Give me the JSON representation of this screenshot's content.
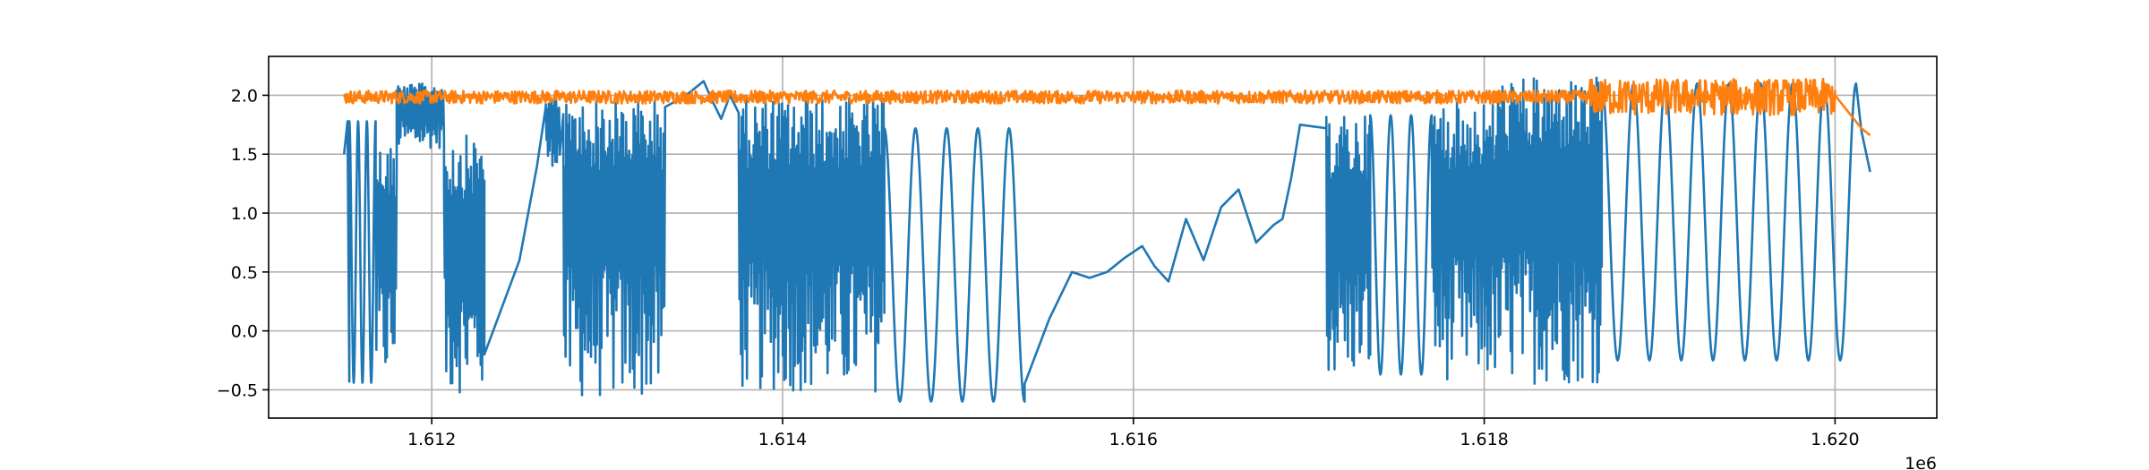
{
  "chart_data": {
    "type": "line",
    "title": "",
    "xlabel": "",
    "ylabel": "",
    "x_offset_label": "1e6",
    "xlim": [
      1.61107,
      1.62058
    ],
    "ylim": [
      -0.74,
      2.33
    ],
    "grid": true,
    "x_ticks": [
      1.612,
      1.614,
      1.616,
      1.618,
      1.62
    ],
    "x_tick_labels": [
      "1.612",
      "1.614",
      "1.616",
      "1.618",
      "1.620"
    ],
    "y_ticks": [
      -0.5,
      0.0,
      0.5,
      1.0,
      1.5,
      2.0
    ],
    "y_tick_labels": [
      "−0.5",
      "0.0",
      "0.5",
      "1.0",
      "1.5",
      "2.0"
    ],
    "series": [
      {
        "color": "#1f77b4",
        "segments": [
          {
            "kind": "points",
            "x": [
              1.6115,
              1.61152,
              1.61153
            ],
            "y": [
              1.5,
              1.78,
              -0.43
            ]
          },
          {
            "kind": "osc",
            "x0": 1.61153,
            "x1": 1.61168,
            "lo": -0.44,
            "hi": 1.78,
            "n": 3
          },
          {
            "kind": "noise",
            "x0": 1.61168,
            "x1": 1.6118,
            "lo": -0.44,
            "hi": 1.6
          },
          {
            "kind": "noise",
            "x0": 1.6118,
            "x1": 1.61207,
            "lo": 1.55,
            "hi": 2.1
          },
          {
            "kind": "noise",
            "x0": 1.61207,
            "x1": 1.6123,
            "lo": -0.53,
            "hi": 1.66
          },
          {
            "kind": "points",
            "x": [
              1.6123,
              1.6124,
              1.6125,
              1.6126,
              1.61265
            ],
            "y": [
              -0.2,
              0.2,
              0.6,
              1.4,
              1.9
            ]
          },
          {
            "kind": "noise",
            "x0": 1.61265,
            "x1": 1.61273,
            "lo": 1.4,
            "hi": 2.0
          },
          {
            "kind": "noise",
            "x0": 1.61275,
            "x1": 1.61333,
            "lo": -0.58,
            "hi": 1.98
          },
          {
            "kind": "points",
            "x": [
              1.61333,
              1.61345,
              1.61355,
              1.6136,
              1.61365,
              1.6137,
              1.61375
            ],
            "y": [
              1.9,
              2.0,
              2.12,
              1.95,
              1.8,
              2.0,
              1.85
            ]
          },
          {
            "kind": "noise",
            "x0": 1.61375,
            "x1": 1.61458,
            "lo": -0.52,
            "hi": 1.98
          },
          {
            "kind": "osc",
            "x0": 1.61458,
            "x1": 1.61538,
            "lo": -0.6,
            "hi": 1.72,
            "n": 4.5
          },
          {
            "kind": "points",
            "x": [
              1.61538,
              1.61552,
              1.61565,
              1.61575,
              1.61585,
              1.61595,
              1.61605,
              1.61612,
              1.6162,
              1.6163,
              1.6164,
              1.6165,
              1.6166,
              1.6167,
              1.6168,
              1.61685,
              1.6169,
              1.61695,
              1.6171
            ],
            "y": [
              -0.45,
              0.1,
              0.5,
              0.45,
              0.5,
              0.62,
              0.72,
              0.55,
              0.42,
              0.95,
              0.6,
              1.05,
              1.2,
              0.75,
              0.9,
              0.95,
              1.3,
              1.75,
              1.72
            ]
          },
          {
            "kind": "noise",
            "x0": 1.6171,
            "x1": 1.61735,
            "lo": -0.4,
            "hi": 1.83
          },
          {
            "kind": "osc",
            "x0": 1.61735,
            "x1": 1.6177,
            "lo": -0.37,
            "hi": 1.83,
            "n": 3
          },
          {
            "kind": "noise",
            "x0": 1.6177,
            "x1": 1.61807,
            "lo": -0.42,
            "hi": 1.95
          },
          {
            "kind": "noise",
            "x0": 1.61807,
            "x1": 1.61867,
            "lo": -0.45,
            "hi": 2.15
          },
          {
            "kind": "osc",
            "x0": 1.61867,
            "x1": 1.62012,
            "lo": -0.25,
            "hi": 2.1,
            "n": 8
          },
          {
            "kind": "points",
            "x": [
              1.62015,
              1.6202
            ],
            "y": [
              1.7,
              1.35
            ]
          }
        ]
      },
      {
        "color": "#ff7f0e",
        "segments": [
          {
            "kind": "noise",
            "x0": 1.6115,
            "x1": 1.6186,
            "lo": 1.93,
            "hi": 2.04
          },
          {
            "kind": "noise",
            "x0": 1.6186,
            "x1": 1.62,
            "lo": 1.83,
            "hi": 2.14
          },
          {
            "kind": "points",
            "x": [
              1.62,
              1.62008,
              1.62015,
              1.6202
            ],
            "y": [
              2.0,
              1.85,
              1.72,
              1.66
            ]
          }
        ]
      }
    ]
  }
}
